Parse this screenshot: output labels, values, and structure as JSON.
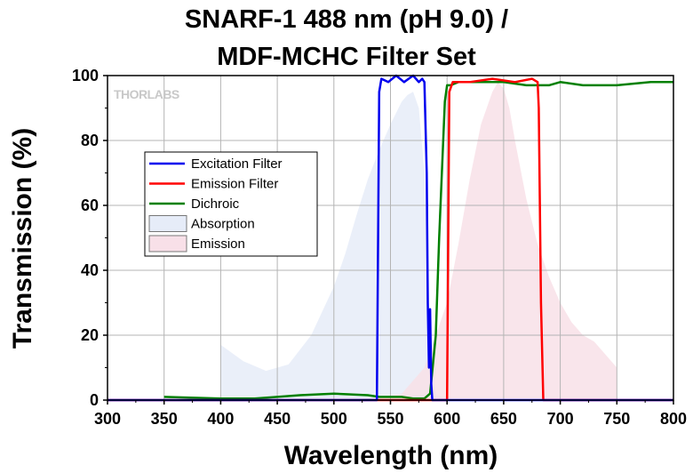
{
  "title_line1": "SNARF-1 488 nm (pH 9.0) /",
  "title_line2": "MDF-MCHC Filter Set",
  "logo_text": "THORLABS",
  "chart_data": {
    "type": "line",
    "title": "SNARF-1 488 nm (pH 9.0) / MDF-MCHC Filter Set",
    "xlabel": "Wavelength (nm)",
    "ylabel": "Transmission (%)",
    "xlim": [
      300,
      800
    ],
    "ylim": [
      0,
      100
    ],
    "xticks": [
      300,
      350,
      400,
      450,
      500,
      550,
      600,
      650,
      700,
      750,
      800
    ],
    "yticks": [
      0,
      20,
      40,
      60,
      80,
      100
    ],
    "grid": true,
    "legend_position": "left-center",
    "series": [
      {
        "name": "Excitation Filter",
        "kind": "line",
        "color": "#0000ee",
        "x": [
          300,
          538,
          540,
          542,
          548,
          555,
          562,
          570,
          575,
          578,
          580,
          582,
          583,
          584,
          585,
          586,
          587,
          600,
          800
        ],
        "y": [
          0,
          0,
          95,
          99,
          98,
          100,
          98,
          100,
          98,
          99,
          98,
          70,
          30,
          10,
          28,
          5,
          0,
          0,
          0
        ]
      },
      {
        "name": "Emission Filter",
        "kind": "line",
        "color": "#ff0000",
        "x": [
          300,
          600,
          602,
          605,
          620,
          640,
          660,
          675,
          680,
          681,
          683,
          685,
          800
        ],
        "y": [
          0,
          0,
          95,
          98,
          98,
          99,
          98,
          99,
          98,
          90,
          30,
          0,
          0
        ]
      },
      {
        "name": "Dichroic",
        "kind": "line",
        "color": "#008000",
        "x": [
          350,
          400,
          430,
          450,
          470,
          500,
          530,
          540,
          560,
          570,
          580,
          585,
          590,
          593,
          596,
          598,
          600,
          603,
          610,
          630,
          650,
          670,
          690,
          700,
          720,
          750,
          780,
          800
        ],
        "y": [
          1,
          0.5,
          0.5,
          1,
          1.5,
          2,
          1.5,
          1,
          1,
          0.5,
          0.5,
          2,
          20,
          50,
          75,
          92,
          97,
          97,
          98,
          98,
          98,
          97,
          97,
          98,
          97,
          97,
          98,
          98
        ]
      },
      {
        "name": "Absorption",
        "kind": "area",
        "color": "#e6ecf8",
        "x": [
          400,
          420,
          440,
          460,
          480,
          500,
          510,
          520,
          530,
          540,
          550,
          560,
          565,
          570,
          575,
          580,
          583,
          585,
          590,
          600
        ],
        "y": [
          17,
          12,
          9,
          11,
          20,
          35,
          45,
          57,
          68,
          77,
          85,
          92,
          94,
          95,
          90,
          70,
          40,
          10,
          2,
          0
        ]
      },
      {
        "name": "Emission",
        "kind": "area",
        "color": "#f8e0e8",
        "x": [
          530,
          560,
          580,
          600,
          610,
          620,
          630,
          640,
          645,
          650,
          655,
          660,
          670,
          680,
          690,
          700,
          710,
          720,
          730,
          740,
          750
        ],
        "y": [
          0,
          2,
          10,
          30,
          48,
          68,
          85,
          95,
          98,
          96,
          90,
          80,
          62,
          48,
          38,
          30,
          24,
          20,
          18,
          14,
          10
        ]
      }
    ]
  }
}
